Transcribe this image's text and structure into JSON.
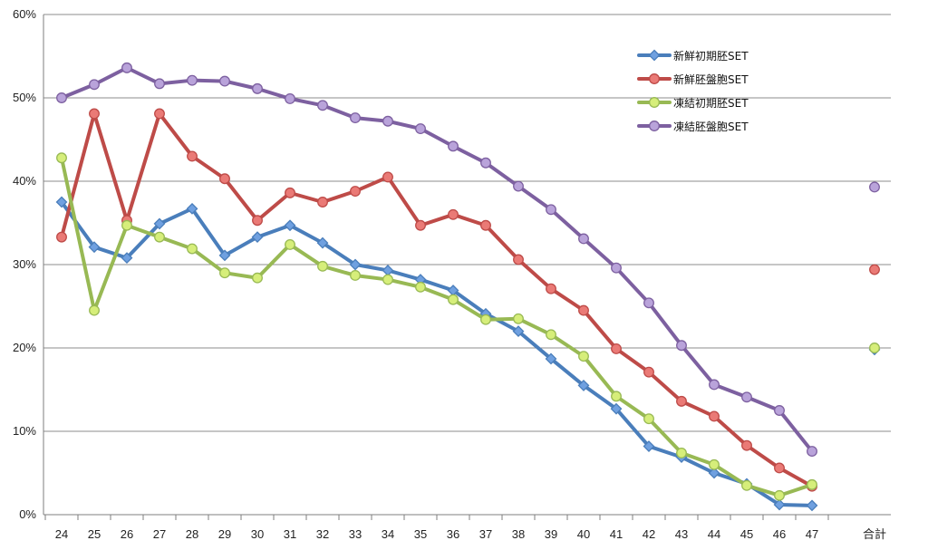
{
  "chart_data": {
    "type": "line",
    "categories": [
      "24",
      "25",
      "26",
      "27",
      "28",
      "29",
      "30",
      "31",
      "32",
      "33",
      "34",
      "35",
      "36",
      "37",
      "38",
      "39",
      "40",
      "41",
      "42",
      "43",
      "44",
      "45",
      "46",
      "47",
      "合計"
    ],
    "ylim": [
      0,
      60
    ],
    "yticks": [
      "0%",
      "10%",
      "20%",
      "30%",
      "40%",
      "50%",
      "60%"
    ],
    "grid": true,
    "legend_position": "top-right",
    "series": [
      {
        "name": "新鮮初期胚SET",
        "color": "#4a7ebb",
        "marker": "diamond",
        "values": [
          37.5,
          32.1,
          30.8,
          34.9,
          36.7,
          31.1,
          33.3,
          34.7,
          32.6,
          30.0,
          29.3,
          28.2,
          26.9,
          24.1,
          22.0,
          18.7,
          15.5,
          12.7,
          8.2,
          6.9,
          5.0,
          3.7,
          1.2,
          1.1,
          19.8
        ]
      },
      {
        "name": "新鮮胚盤胞SET",
        "color": "#be4b48",
        "marker": "circle",
        "values": [
          33.3,
          48.1,
          35.3,
          48.1,
          43.0,
          40.3,
          35.3,
          38.6,
          37.5,
          38.8,
          40.5,
          34.7,
          36.0,
          34.7,
          30.6,
          27.1,
          24.5,
          19.9,
          17.1,
          13.6,
          11.8,
          8.3,
          5.6,
          3.4,
          29.4
        ]
      },
      {
        "name": "凍結初期胚SET",
        "color": "#98b954",
        "marker": "circle",
        "values": [
          42.8,
          24.5,
          34.7,
          33.3,
          31.9,
          29.0,
          28.4,
          32.4,
          29.8,
          28.7,
          28.2,
          27.3,
          25.8,
          23.4,
          23.5,
          21.6,
          19.0,
          14.2,
          11.5,
          7.4,
          6.0,
          3.5,
          2.3,
          3.6,
          20.0
        ]
      },
      {
        "name": "凍結胚盤胞SET",
        "color": "#7d60a0",
        "marker": "circle",
        "values": [
          50.0,
          51.6,
          53.6,
          51.7,
          52.1,
          52.0,
          51.1,
          49.9,
          49.1,
          47.6,
          47.2,
          46.3,
          44.2,
          42.2,
          39.4,
          36.6,
          33.1,
          29.6,
          25.4,
          20.3,
          15.6,
          14.1,
          12.5,
          7.6,
          39.3
        ]
      }
    ]
  }
}
